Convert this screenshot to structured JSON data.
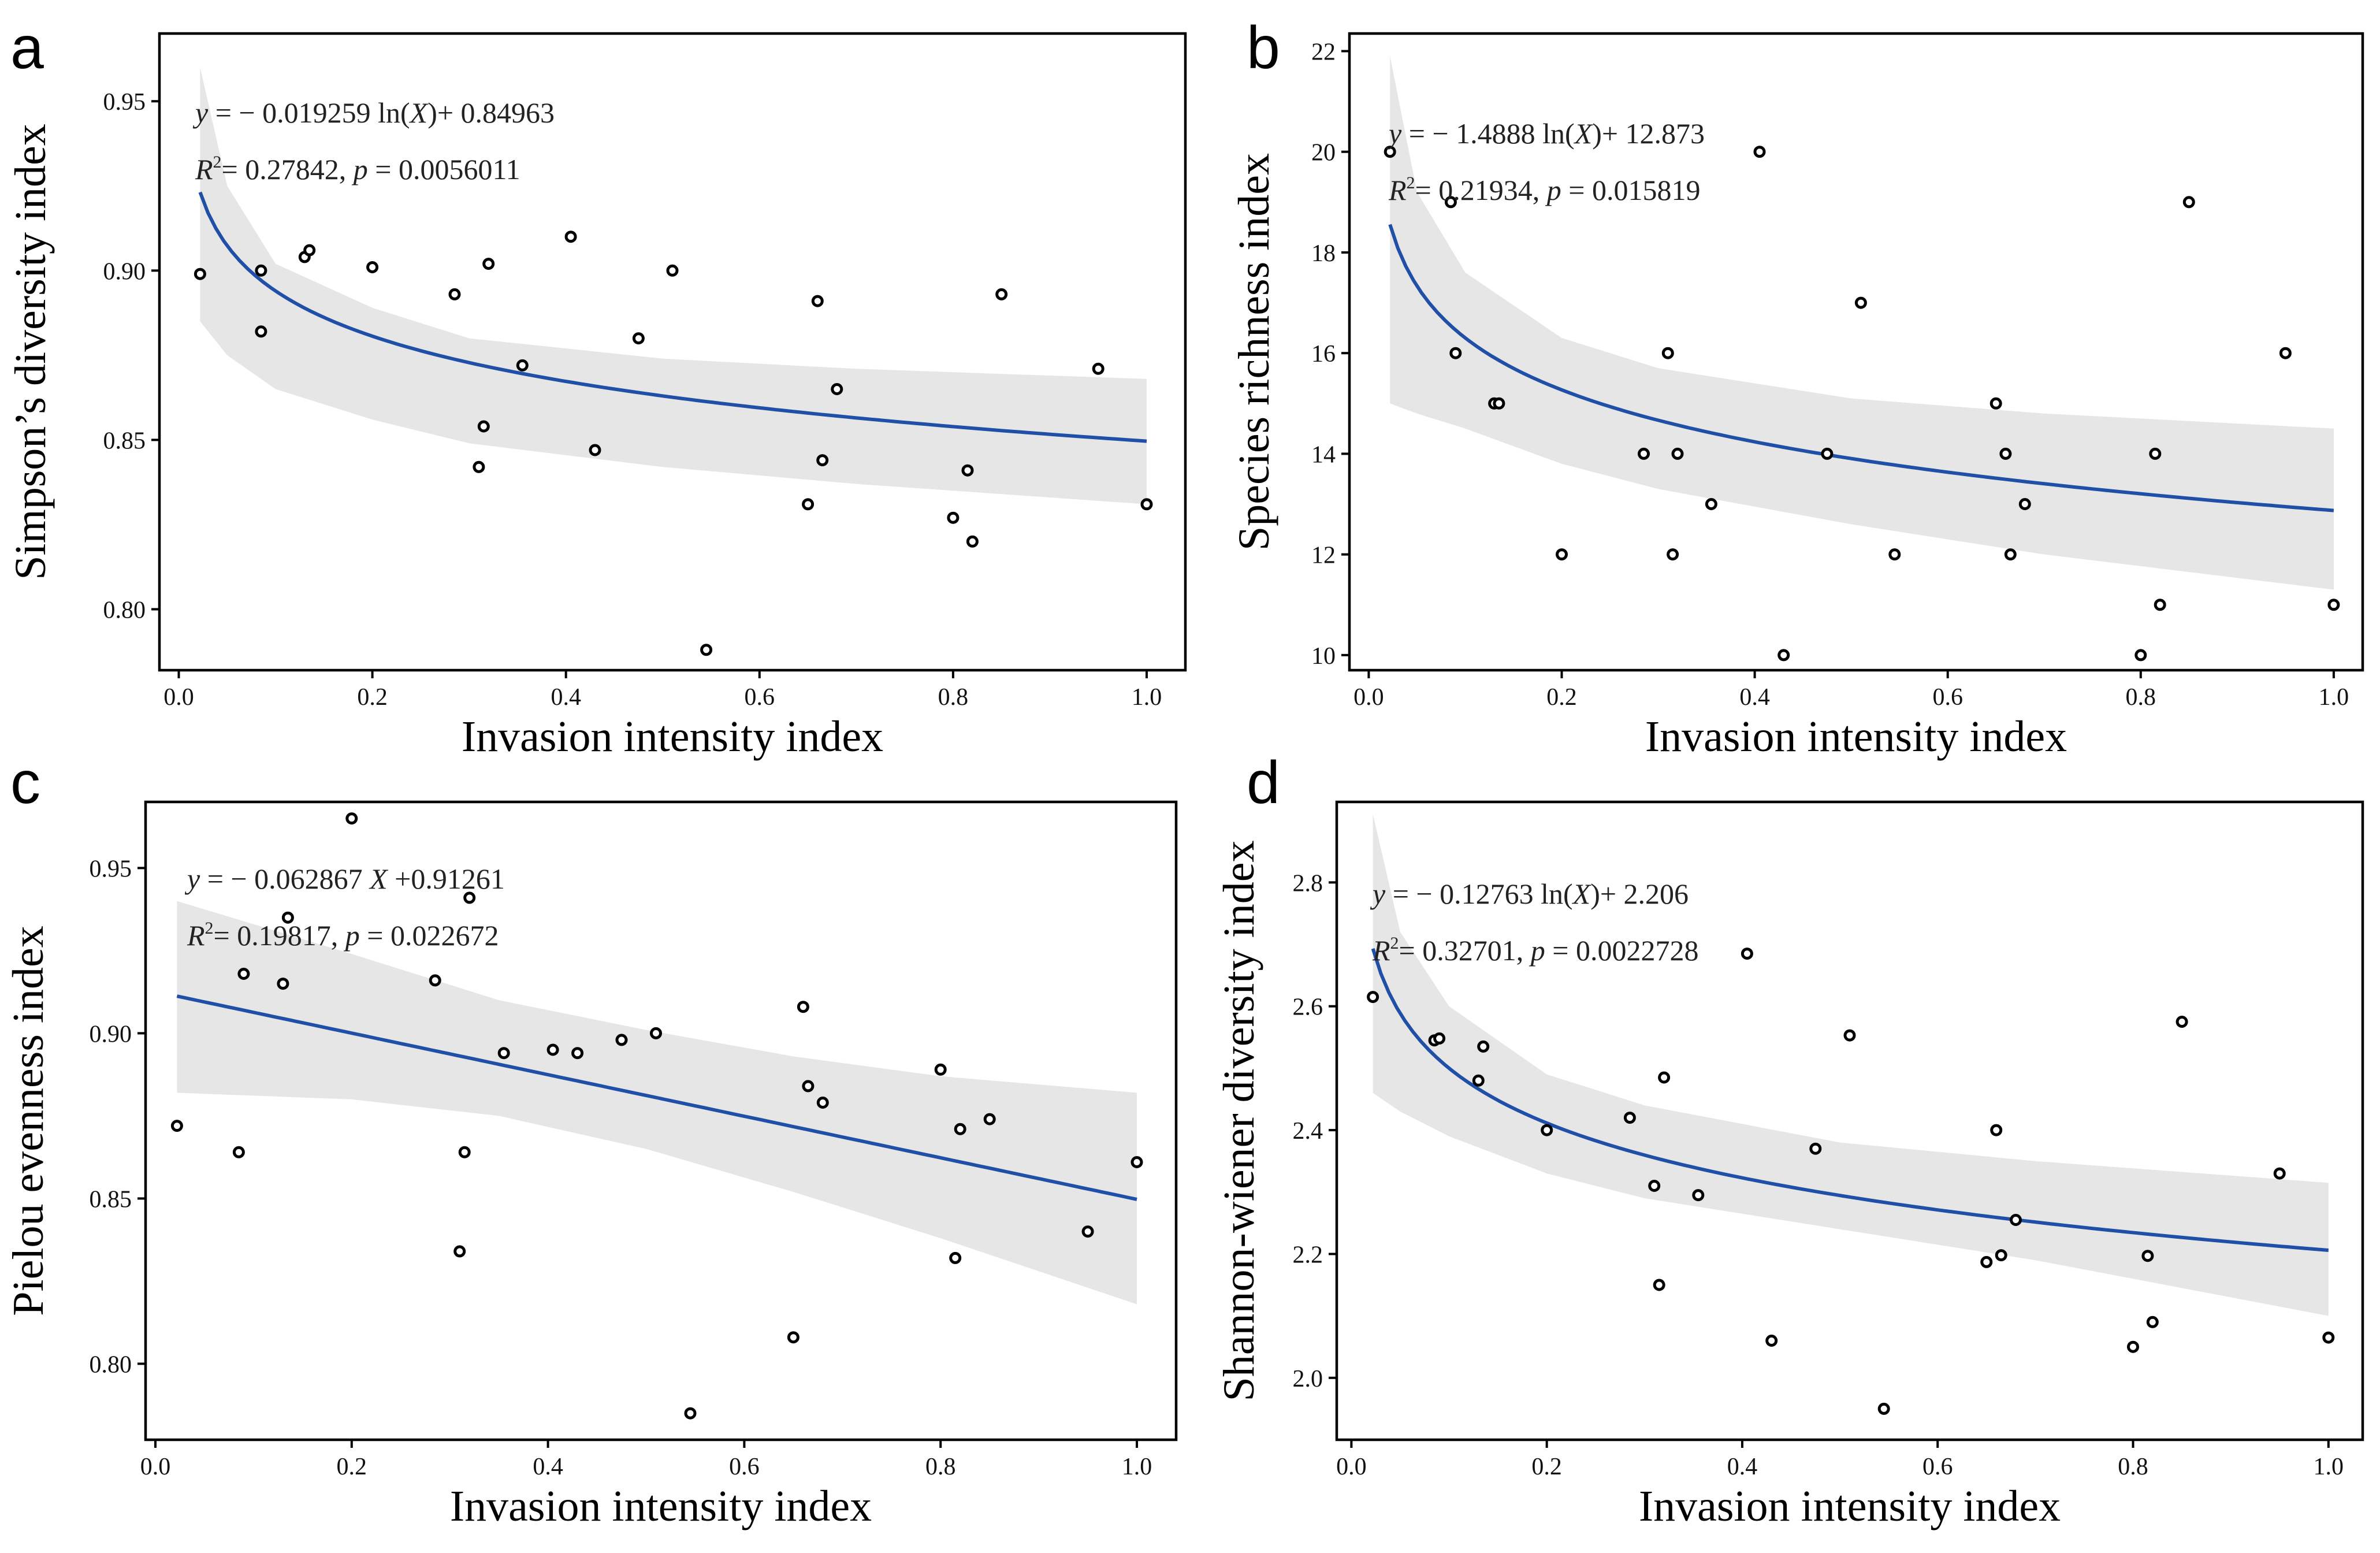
{
  "chart_data": [
    {
      "id": "a",
      "type": "scatter",
      "panel_label": "a",
      "xlabel": "Invasion intensity index",
      "ylabel": "Simpson’s diversity index",
      "xlim": [
        -0.02,
        1.04
      ],
      "ylim": [
        0.782,
        0.97
      ],
      "xticks": [
        "0.0",
        "0.2",
        "0.4",
        "0.6",
        "0.8",
        "1.0"
      ],
      "yticks": [
        "0.80",
        "0.85",
        "0.90",
        "0.95"
      ],
      "equation": {
        "line1": {
          "y": "y",
          "eq1": " = − 0.019259 ln(",
          "X": "X",
          "eq2": ")+ 0.84963"
        },
        "line2": {
          "R": "R",
          "sup": "2",
          "eq1": "= 0.27842,  ",
          "p": "p",
          "eq2": "  = 0.0056011"
        }
      },
      "fit": {
        "model": "log",
        "slope": -0.019259,
        "intercept": 0.84963,
        "x_from": 0.022,
        "x_to": 1.0
      },
      "band": {
        "x": [
          0.022,
          0.05,
          0.1,
          0.2,
          0.3,
          0.5,
          0.7,
          1.0
        ],
        "upper": [
          0.96,
          0.925,
          0.902,
          0.889,
          0.88,
          0.874,
          0.871,
          0.868
        ],
        "lower": [
          0.885,
          0.875,
          0.865,
          0.856,
          0.849,
          0.842,
          0.837,
          0.831
        ]
      },
      "points": {
        "x": [
          0.022,
          0.085,
          0.085,
          0.13,
          0.135,
          0.2,
          0.285,
          0.31,
          0.315,
          0.32,
          0.355,
          0.405,
          0.43,
          0.475,
          0.51,
          0.545,
          0.65,
          0.66,
          0.665,
          0.68,
          0.8,
          0.815,
          0.82,
          0.85,
          0.95,
          1.0
        ],
        "y": [
          0.899,
          0.9,
          0.882,
          0.904,
          0.906,
          0.901,
          0.893,
          0.842,
          0.854,
          0.902,
          0.872,
          0.91,
          0.847,
          0.88,
          0.9,
          0.788,
          0.831,
          0.891,
          0.844,
          0.865,
          0.827,
          0.841,
          0.82,
          0.893,
          0.871,
          0.831
        ]
      }
    },
    {
      "id": "b",
      "type": "scatter",
      "panel_label": "b",
      "xlabel": "Invasion intensity index",
      "ylabel": "Species richness index",
      "xlim": [
        -0.02,
        1.03
      ],
      "ylim": [
        9.7,
        22.35
      ],
      "xticks": [
        "0.0",
        "0.2",
        "0.4",
        "0.6",
        "0.8",
        "1.0"
      ],
      "yticks": [
        "10",
        "12",
        "14",
        "16",
        "18",
        "20",
        "22"
      ],
      "equation": {
        "line1": {
          "y": "y",
          "eq1": " = − 1.4888 ln(",
          "X": "X",
          "eq2": ")+ 12.873"
        },
        "line2": {
          "R": "R",
          "sup": "2",
          "eq1": "= 0.21934,  ",
          "p": "p",
          "eq2": "  = 0.015819"
        }
      },
      "fit": {
        "model": "log",
        "slope": -1.4888,
        "intercept": 12.873,
        "x_from": 0.022,
        "x_to": 1.0
      },
      "band": {
        "x": [
          0.022,
          0.05,
          0.1,
          0.2,
          0.3,
          0.5,
          0.7,
          1.0
        ],
        "upper": [
          21.9,
          19.2,
          17.6,
          16.3,
          15.7,
          15.1,
          14.8,
          14.5
        ],
        "lower": [
          15.0,
          14.8,
          14.5,
          13.8,
          13.3,
          12.6,
          12.0,
          11.3
        ]
      },
      "points": {
        "x": [
          0.022,
          0.085,
          0.09,
          0.13,
          0.135,
          0.2,
          0.285,
          0.31,
          0.315,
          0.32,
          0.355,
          0.405,
          0.43,
          0.475,
          0.51,
          0.545,
          0.65,
          0.66,
          0.665,
          0.68,
          0.8,
          0.815,
          0.82,
          0.85,
          0.95,
          1.0
        ],
        "y": [
          20,
          19,
          16,
          15,
          15,
          12,
          14,
          16,
          12,
          14,
          13,
          20,
          10,
          14,
          17,
          12,
          15,
          14,
          12,
          13,
          10,
          14,
          11,
          19,
          16,
          11
        ]
      }
    },
    {
      "id": "c",
      "type": "scatter",
      "panel_label": "c",
      "xlabel": "Invasion intensity index",
      "ylabel": "Pielou evenness index",
      "xlim": [
        -0.01,
        1.04
      ],
      "ylim": [
        0.777,
        0.97
      ],
      "xticks": [
        "0.0",
        "0.2",
        "0.4",
        "0.6",
        "0.8",
        "1.0"
      ],
      "yticks": [
        "0.80",
        "0.85",
        "0.90",
        "0.95"
      ],
      "equation": {
        "line1": {
          "y": "y",
          "eq1": " = − 0.062867 ",
          "X": "X",
          "eq2": " +0.91261"
        },
        "line2": {
          "R": "R",
          "sup": "2",
          "eq1": "= 0.19817,  ",
          "p": "p",
          "eq2": "  = 0.022672"
        }
      },
      "fit": {
        "model": "linear",
        "slope": -0.062867,
        "intercept": 0.91261,
        "x_from": 0.022,
        "x_to": 1.0
      },
      "band": {
        "x": [
          0.022,
          0.2,
          0.35,
          0.5,
          0.65,
          0.8,
          1.0
        ],
        "upper": [
          0.94,
          0.924,
          0.91,
          0.901,
          0.893,
          0.887,
          0.882
        ],
        "lower": [
          0.882,
          0.88,
          0.875,
          0.865,
          0.852,
          0.838,
          0.818
        ]
      },
      "points": {
        "x": [
          0.022,
          0.085,
          0.09,
          0.13,
          0.135,
          0.2,
          0.285,
          0.31,
          0.315,
          0.32,
          0.355,
          0.405,
          0.43,
          0.475,
          0.51,
          0.545,
          0.65,
          0.66,
          0.665,
          0.68,
          0.8,
          0.815,
          0.82,
          0.85,
          0.95,
          1.0
        ],
        "y": [
          0.872,
          0.864,
          0.918,
          0.915,
          0.935,
          0.965,
          0.916,
          0.834,
          0.864,
          0.941,
          0.894,
          0.895,
          0.894,
          0.898,
          0.9,
          0.785,
          0.808,
          0.908,
          0.884,
          0.879,
          0.889,
          0.832,
          0.871,
          0.874,
          0.84,
          0.861
        ]
      }
    },
    {
      "id": "d",
      "type": "scatter",
      "panel_label": "d",
      "xlabel": "Invasion intensity index",
      "ylabel": "Shannon-wiener diversity index",
      "xlim": [
        -0.015,
        1.035
      ],
      "ylim": [
        1.9,
        2.93
      ],
      "xticks": [
        "0.0",
        "0.2",
        "0.4",
        "0.6",
        "0.8",
        "1.0"
      ],
      "yticks": [
        "2.0",
        "2.2",
        "2.4",
        "2.6",
        "2.8"
      ],
      "equation": {
        "line1": {
          "y": "y",
          "eq1": " = − 0.12763 ln(",
          "X": "X",
          "eq2": ")+ 2.206"
        },
        "line2": {
          "R": "R",
          "sup": "2",
          "eq1": "= 0.32701,  ",
          "p": "p",
          "eq2": "  = 0.0022728"
        }
      },
      "fit": {
        "model": "log",
        "slope": -0.12763,
        "intercept": 2.206,
        "x_from": 0.022,
        "x_to": 1.0
      },
      "band": {
        "x": [
          0.022,
          0.05,
          0.1,
          0.2,
          0.3,
          0.5,
          0.7,
          1.0
        ],
        "upper": [
          2.91,
          2.72,
          2.6,
          2.49,
          2.44,
          2.38,
          2.35,
          2.315
        ],
        "lower": [
          2.46,
          2.43,
          2.39,
          2.33,
          2.29,
          2.24,
          2.19,
          2.1
        ]
      },
      "points": {
        "x": [
          0.022,
          0.085,
          0.09,
          0.13,
          0.135,
          0.2,
          0.285,
          0.31,
          0.315,
          0.32,
          0.355,
          0.405,
          0.43,
          0.475,
          0.51,
          0.545,
          0.65,
          0.66,
          0.665,
          0.68,
          0.8,
          0.815,
          0.82,
          0.85,
          0.95,
          1.0
        ],
        "y": [
          2.615,
          2.545,
          2.548,
          2.48,
          2.535,
          2.4,
          2.42,
          2.31,
          2.15,
          2.485,
          2.295,
          2.685,
          2.06,
          2.37,
          2.553,
          1.95,
          2.187,
          2.4,
          2.198,
          2.255,
          2.05,
          2.197,
          2.09,
          2.575,
          2.33,
          2.065
        ]
      }
    }
  ]
}
